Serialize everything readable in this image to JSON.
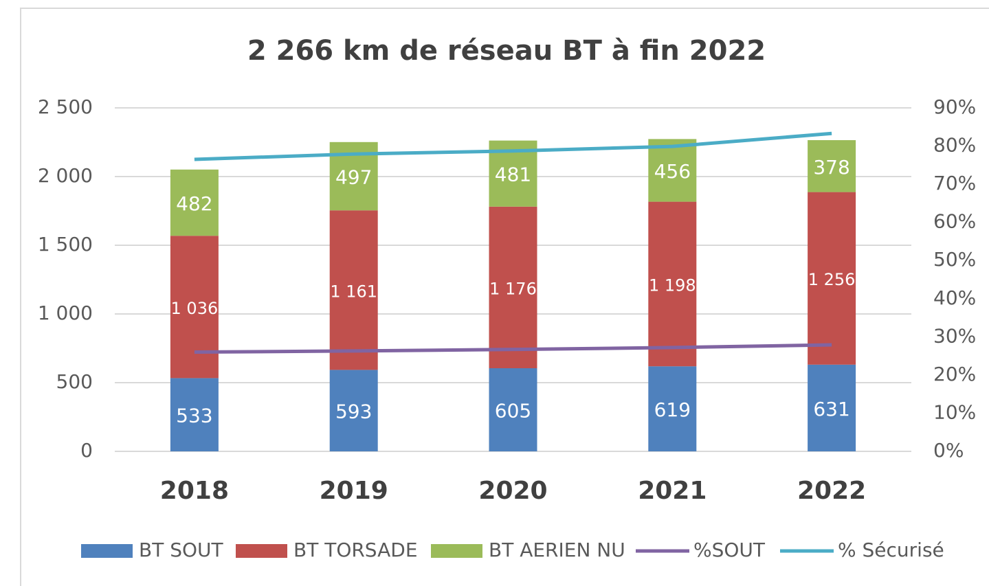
{
  "chart_data": {
    "type": "bar",
    "stacked": true,
    "title": "2 266 km de réseau BT à fin 2022",
    "categories": [
      "2018",
      "2019",
      "2020",
      "2021",
      "2022"
    ],
    "series": [
      {
        "name": "BT SOUT",
        "color": "#4f81bd",
        "values": [
          533,
          593,
          605,
          619,
          631
        ]
      },
      {
        "name": "BT TORSADE",
        "color": "#c0504d",
        "values": [
          1036,
          1161,
          1176,
          1198,
          1256
        ],
        "value_labels": [
          "1 036",
          "1 161",
          "1 176",
          "1 198",
          "1 256"
        ]
      },
      {
        "name": "BT AERIEN NU",
        "color": "#9bbb59",
        "values": [
          482,
          497,
          481,
          456,
          378
        ]
      },
      {
        "name": "%SOUT",
        "color": "#8064a2",
        "axis": "y2",
        "values": [
          26,
          26.3,
          26.7,
          27.2,
          27.9
        ]
      },
      {
        "name": "% Sécurisé",
        "color": "#4bacc6",
        "axis": "y2",
        "values": [
          76.5,
          77.9,
          78.7,
          79.9,
          83.3
        ]
      }
    ],
    "ylim": [
      0,
      2500
    ],
    "yticks": [
      0,
      500,
      {
        "value": 1000,
        "label": "1 000"
      },
      {
        "value": 1500,
        "label": "1 500"
      },
      {
        "value": 2000,
        "label": "2 000"
      },
      {
        "value": 2500,
        "label": "2 500"
      }
    ],
    "y2lim": [
      0,
      90
    ],
    "y2ticks": [
      {
        "value": 0,
        "label": "0%"
      },
      {
        "value": 10,
        "label": "10%"
      },
      {
        "value": 20,
        "label": "20%"
      },
      {
        "value": 30,
        "label": "30%"
      },
      {
        "value": 40,
        "label": "40%"
      },
      {
        "value": 50,
        "label": "50%"
      },
      {
        "value": 60,
        "label": "60%"
      },
      {
        "value": 70,
        "label": "70%"
      },
      {
        "value": 80,
        "label": "80%"
      },
      {
        "value": 90,
        "label": "90%"
      }
    ],
    "grid": true,
    "legend": "bottom"
  }
}
